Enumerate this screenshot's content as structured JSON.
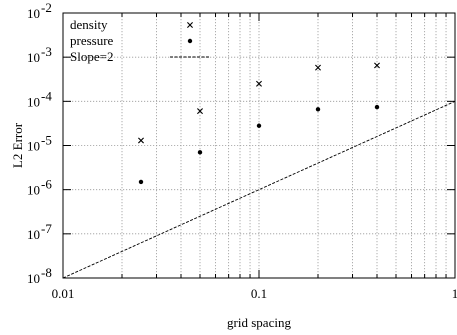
{
  "chart_data": {
    "type": "scatter",
    "xlabel": "grid spacing",
    "ylabel": "L2 Error",
    "xscale": "log",
    "yscale": "log",
    "xlim": [
      0.01,
      1
    ],
    "ylim": [
      1e-08,
      0.01
    ],
    "grid": true,
    "legend_position": "top-left",
    "x_tick_labels": [
      {
        "value": 0.01,
        "label": "0.01"
      },
      {
        "value": 0.1,
        "label": "0.1"
      },
      {
        "value": 1,
        "label": "1"
      }
    ],
    "y_tick_labels": [
      {
        "value": 1e-08,
        "base": "10",
        "exp": "-8"
      },
      {
        "value": 1e-07,
        "base": "10",
        "exp": "-7"
      },
      {
        "value": 1e-06,
        "base": "10",
        "exp": "-6"
      },
      {
        "value": 1e-05,
        "base": "10",
        "exp": "-5"
      },
      {
        "value": 0.0001,
        "base": "10",
        "exp": "-4"
      },
      {
        "value": 0.001,
        "base": "10",
        "exp": "-3"
      },
      {
        "value": 0.01,
        "base": "10",
        "exp": "-2"
      }
    ],
    "series": [
      {
        "name": "density",
        "marker": "cross",
        "points": [
          {
            "x": 0.025,
            "y": 1.3e-05
          },
          {
            "x": 0.05,
            "y": 6e-05
          },
          {
            "x": 0.1,
            "y": 0.00025
          },
          {
            "x": 0.2,
            "y": 0.00058
          },
          {
            "x": 0.4,
            "y": 0.00065
          }
        ]
      },
      {
        "name": "pressure",
        "marker": "dot",
        "points": [
          {
            "x": 0.025,
            "y": 1.5e-06
          },
          {
            "x": 0.05,
            "y": 7e-06
          },
          {
            "x": 0.1,
            "y": 2.8e-05
          },
          {
            "x": 0.2,
            "y": 6.6e-05
          },
          {
            "x": 0.4,
            "y": 7.4e-05
          }
        ]
      },
      {
        "name": "Slope=2",
        "marker": "dashed-line",
        "points": [
          {
            "x": 0.01,
            "y": 1e-08
          },
          {
            "x": 1,
            "y": 0.0001
          }
        ]
      }
    ]
  }
}
